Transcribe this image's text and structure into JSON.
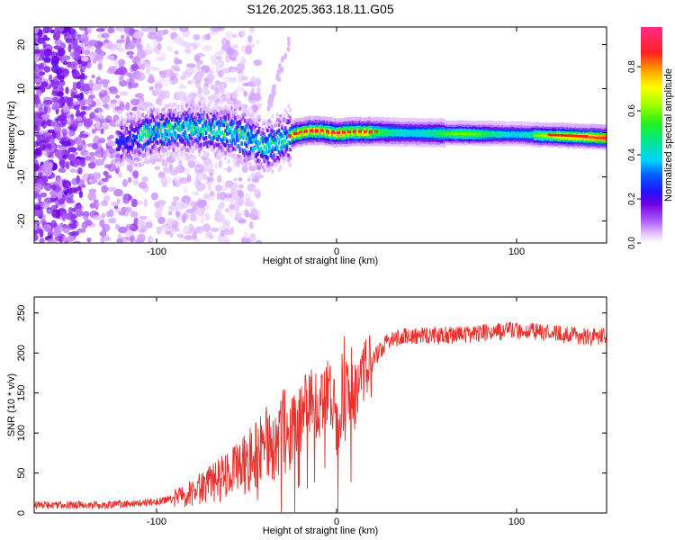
{
  "figure_title": "S126.2025.363.18.11.G05",
  "chart_data": [
    {
      "type": "heatmap",
      "title": "S126.2025.363.18.11.G05",
      "xlabel": "Height of straight line (km)",
      "ylabel": "Frequency (Hz)",
      "xlim": [
        -168,
        150
      ],
      "ylim": [
        -25,
        24
      ],
      "x_ticks": [
        -100,
        0,
        100
      ],
      "x_tick_labels": [
        "-100",
        "0",
        "100"
      ],
      "y_ticks": [
        -20,
        -10,
        0,
        10,
        20
      ],
      "y_tick_labels": [
        "-20",
        "-10",
        "0",
        "10",
        "20"
      ],
      "colorbar": {
        "label": "Normalized spectral amplitude",
        "range": [
          0,
          0.98
        ],
        "ticks": [
          0.0,
          0.2,
          0.4,
          0.6,
          0.8
        ],
        "tick_labels": [
          "0.0",
          "0.2",
          "0.4",
          "0.6",
          "0.8"
        ],
        "colormap": [
          "#ffffff",
          "#cc99ff",
          "#8a00e6",
          "#1e14ff",
          "#00d2ff",
          "#00e67a",
          "#5aff00",
          "#ffff00",
          "#ff8c00",
          "#ff1a1a",
          "#ff2a8a"
        ]
      },
      "ridge": {
        "description": "frequency centerline of the signal vs height",
        "x": [
          -120,
          -105,
          -95,
          -85,
          -75,
          -65,
          -55,
          -48,
          -40,
          -34,
          -28,
          -22,
          -15,
          -8,
          0,
          10,
          20,
          40,
          60,
          80,
          100,
          120,
          140,
          150
        ],
        "y": [
          -2,
          0,
          0.5,
          1,
          1,
          0.5,
          0,
          -1.5,
          -3,
          -2.5,
          -1,
          0,
          0.5,
          0.5,
          0,
          0.3,
          0.3,
          0.1,
          0,
          -0.1,
          -0.2,
          -0.5,
          -0.8,
          -1
        ]
      }
    },
    {
      "type": "line",
      "xlabel": "Height of straight line (km)",
      "ylabel": "SNR (10 * v/v)",
      "xlim": [
        -168,
        150
      ],
      "ylim": [
        0,
        270
      ],
      "x_ticks": [
        -100,
        0,
        100
      ],
      "x_tick_labels": [
        "-100",
        "0",
        "100"
      ],
      "y_ticks": [
        0,
        50,
        100,
        150,
        200,
        250
      ],
      "y_tick_labels": [
        "0",
        "50",
        "100",
        "150",
        "200",
        "250"
      ],
      "series": [
        {
          "name": "SNR",
          "color": "#e8322e",
          "x": [
            -168,
            -150,
            -130,
            -110,
            -100,
            -90,
            -80,
            -70,
            -60,
            -50,
            -45,
            -40,
            -35,
            -30,
            -25,
            -20,
            -15,
            -10,
            -5,
            0,
            5,
            10,
            15,
            20,
            25,
            30,
            40,
            60,
            80,
            100,
            120,
            140,
            150
          ],
          "values": [
            10,
            10,
            10,
            12,
            14,
            18,
            25,
            35,
            45,
            60,
            75,
            90,
            85,
            100,
            110,
            120,
            140,
            130,
            160,
            110,
            150,
            140,
            170,
            190,
            205,
            218,
            222,
            222,
            225,
            228,
            225,
            220,
            220
          ]
        }
      ]
    }
  ]
}
